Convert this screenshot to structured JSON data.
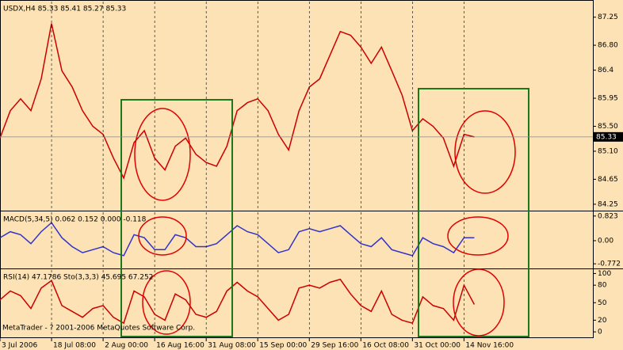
{
  "chart_data": [
    {
      "type": "line",
      "title": "USDX,H4 85.33 85.41 85.27 85.33",
      "x": [
        0,
        2,
        4,
        6,
        8,
        10,
        12,
        14,
        16,
        18,
        20,
        22,
        24,
        26,
        28,
        30,
        32,
        34,
        36,
        38,
        40,
        42,
        44,
        46,
        48,
        50,
        52,
        54,
        56,
        58,
        60,
        62,
        64,
        66,
        68,
        70,
        72,
        74,
        76,
        78,
        80,
        82,
        84,
        86,
        88,
        90,
        92
      ],
      "values": [
        85.31,
        85.75,
        85.94,
        85.75,
        86.26,
        87.15,
        86.39,
        86.13,
        85.75,
        85.5,
        85.37,
        84.99,
        84.67,
        85.24,
        85.43,
        84.99,
        84.8,
        85.18,
        85.31,
        85.05,
        84.92,
        84.86,
        85.18,
        85.75,
        85.88,
        85.94,
        85.75,
        85.37,
        85.12,
        85.75,
        86.13,
        86.26,
        86.64,
        87.02,
        86.96,
        86.77,
        86.51,
        86.77,
        86.39,
        86.0,
        85.43,
        85.62,
        85.5,
        85.31,
        84.86,
        85.37,
        85.33
      ],
      "color": "#cc0000",
      "xlim": [
        0,
        115
      ],
      "ylim": [
        84.16,
        87.5
      ],
      "yticks": [
        87.25,
        {
          "value": 86.8,
          "label": "86.80"
        },
        86.4,
        85.95,
        {
          "value": 85.5,
          "label": "85.50"
        },
        {
          "value": 85.1,
          "label": "85.10"
        },
        84.65,
        84.25
      ],
      "last_price": 85.33
    },
    {
      "type": "line",
      "title": "MACD(5,34,5) 0.062 0.152 0.000 -0.118",
      "x": [
        0,
        2,
        4,
        6,
        8,
        10,
        12,
        14,
        16,
        18,
        20,
        22,
        24,
        26,
        28,
        30,
        32,
        34,
        36,
        38,
        40,
        42,
        44,
        46,
        48,
        50,
        52,
        54,
        56,
        58,
        60,
        62,
        64,
        66,
        68,
        70,
        72,
        74,
        76,
        78,
        80,
        82,
        84,
        86,
        88,
        90,
        92
      ],
      "values": [
        0.1,
        0.3,
        0.2,
        -0.1,
        0.3,
        0.6,
        0.1,
        -0.2,
        -0.4,
        -0.3,
        -0.2,
        -0.4,
        -0.5,
        0.2,
        0.1,
        -0.3,
        -0.3,
        0.2,
        0.1,
        -0.2,
        -0.2,
        -0.1,
        0.2,
        0.5,
        0.3,
        0.2,
        -0.1,
        -0.4,
        -0.3,
        0.3,
        0.4,
        0.3,
        0.4,
        0.5,
        0.2,
        -0.1,
        -0.2,
        0.1,
        -0.3,
        -0.4,
        -0.5,
        0.1,
        -0.1,
        -0.2,
        -0.4,
        0.1,
        0.1
      ],
      "color": "#3333cc",
      "xlim": [
        0,
        115
      ],
      "ylim": [
        -0.9,
        0.95
      ],
      "yticks": [
        0.823,
        {
          "value": 0,
          "label": "0.00"
        },
        -0.772
      ]
    },
    {
      "type": "line",
      "title": "RSI(14) 47.1786 Sto(3,3,3) 45.695 67.252",
      "x": [
        0,
        2,
        4,
        6,
        8,
        10,
        12,
        14,
        16,
        18,
        20,
        22,
        24,
        26,
        28,
        30,
        32,
        34,
        36,
        38,
        40,
        42,
        44,
        46,
        48,
        50,
        52,
        54,
        56,
        58,
        60,
        62,
        64,
        66,
        68,
        70,
        72,
        74,
        76,
        78,
        80,
        82,
        84,
        86,
        88,
        90,
        92
      ],
      "values": [
        55,
        70,
        62,
        40,
        75,
        88,
        45,
        35,
        25,
        40,
        45,
        25,
        15,
        70,
        60,
        30,
        20,
        65,
        55,
        30,
        25,
        35,
        70,
        85,
        70,
        60,
        40,
        20,
        30,
        75,
        80,
        75,
        85,
        90,
        65,
        45,
        35,
        70,
        30,
        20,
        15,
        60,
        45,
        40,
        20,
        80,
        47
      ],
      "color": "#cc0000",
      "xlim": [
        0,
        115
      ],
      "ylim": [
        -8,
        106
      ],
      "yticks": [
        100,
        80,
        50,
        20,
        0
      ],
      "xticks": [
        {
          "value": 0,
          "label": "3 Jul 2006"
        },
        {
          "value": 10,
          "label": "18 Jul 08:00"
        },
        {
          "value": 20,
          "label": "2 Aug 00:00"
        },
        {
          "value": 30,
          "label": "16 Aug 16:00"
        },
        {
          "value": 40,
          "label": "31 Aug 08:00"
        },
        {
          "value": 50,
          "label": "15 Sep 00:00"
        },
        {
          "value": 60,
          "label": "29 Sep 16:00"
        },
        {
          "value": 70,
          "label": "16 Oct 08:00"
        },
        {
          "value": 80,
          "label": "31 Oct 00:00"
        },
        {
          "value": 90,
          "label": "14 Nov 16:00"
        }
      ],
      "annotation": "MetaTrader - ? 2001-2006 MetaQuotes Software Corp."
    }
  ]
}
